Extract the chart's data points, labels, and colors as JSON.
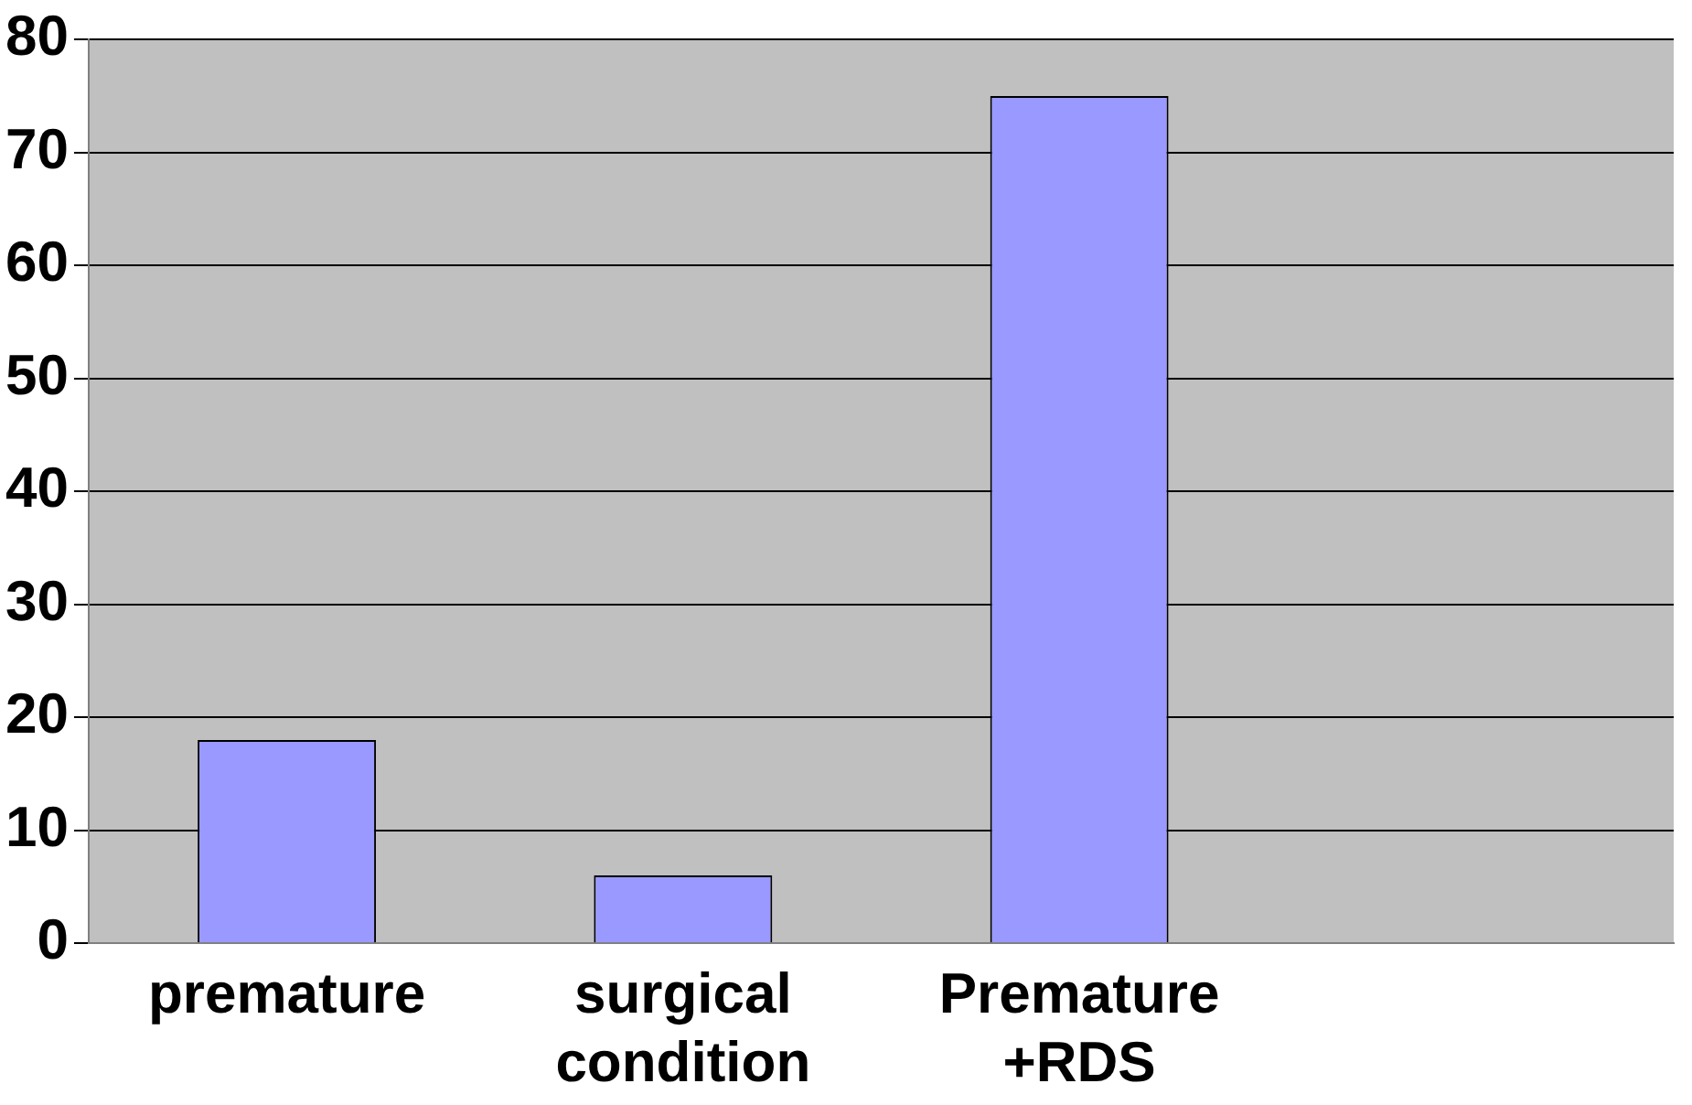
{
  "chart_data": {
    "type": "bar",
    "categories": [
      "premature",
      "surgical condition",
      "Premature +RDS",
      null
    ],
    "values": [
      18,
      6,
      75,
      null
    ],
    "color": "#9999ff",
    "ylim": [
      0,
      80
    ],
    "yticks": [
      0,
      10,
      20,
      30,
      40,
      50,
      60,
      70,
      80
    ],
    "grid": "y",
    "legend": false
  }
}
